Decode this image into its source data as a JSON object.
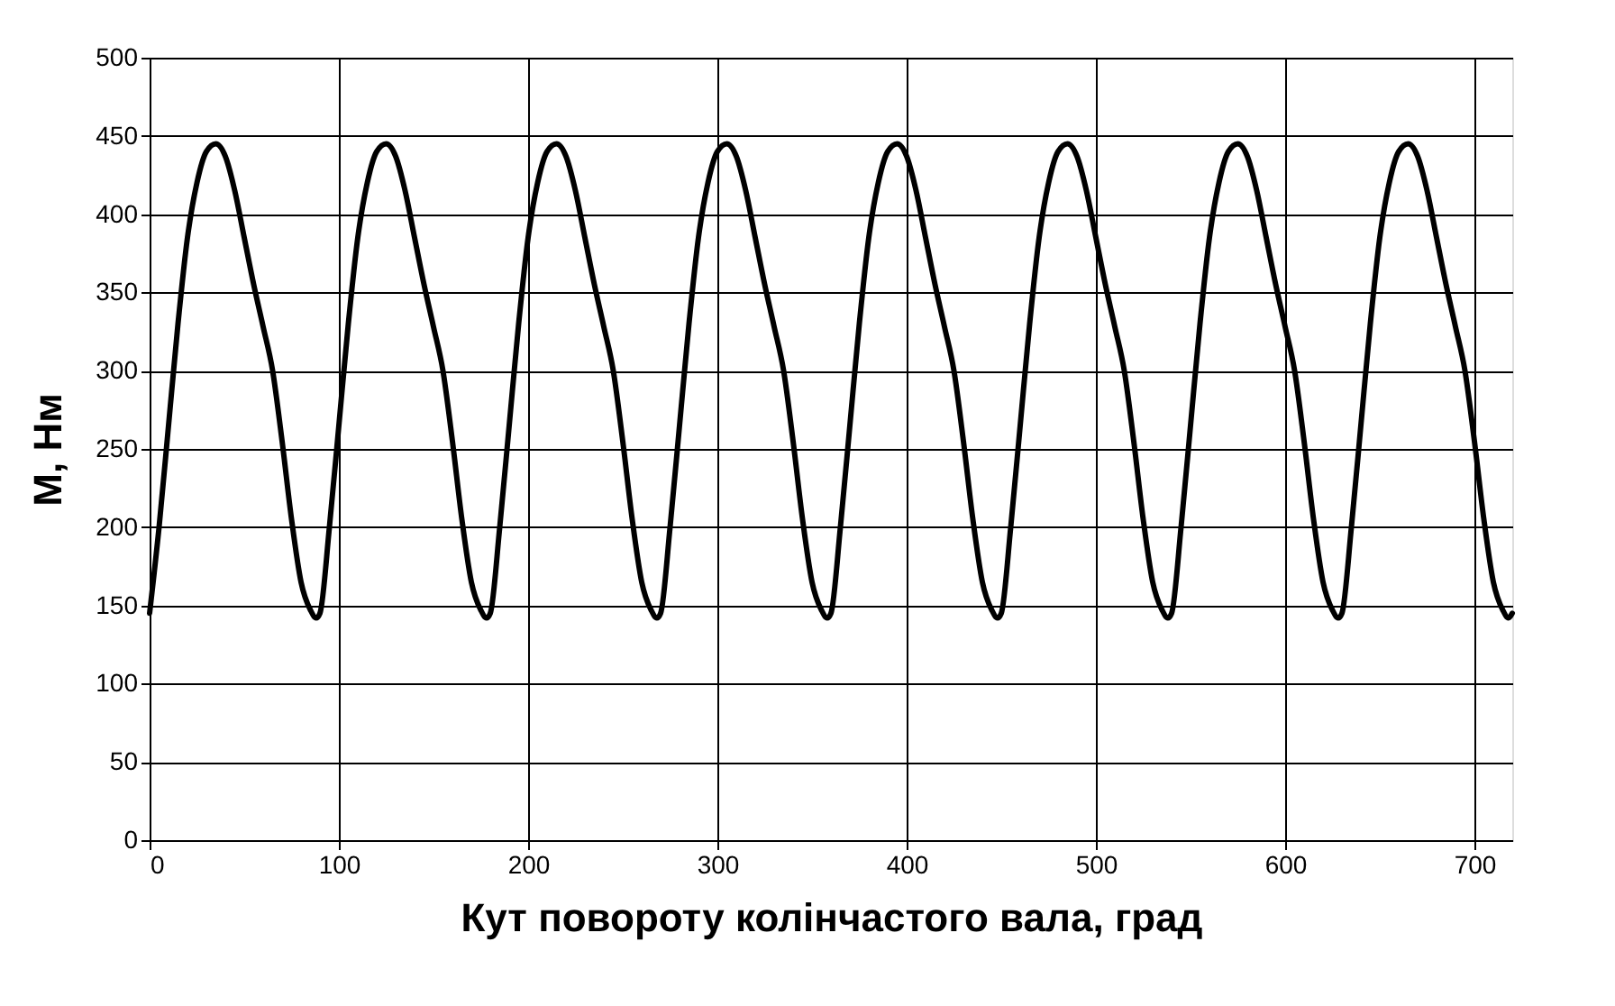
{
  "chart_data": {
    "type": "line",
    "xlabel": "Кут повороту колінчастого вала, град",
    "ylabel": "М, Нм",
    "x": [
      0,
      5,
      10,
      15,
      20,
      25,
      30,
      35,
      40,
      45,
      50,
      55,
      60,
      65,
      70,
      75,
      80,
      85,
      88,
      90,
      95,
      100,
      105,
      110,
      115,
      120,
      125,
      130,
      135,
      140,
      145,
      150,
      155,
      160,
      165,
      170,
      175,
      178,
      180,
      185,
      190,
      195,
      200,
      205,
      210,
      215,
      220,
      225,
      230,
      235,
      240,
      245,
      250,
      255,
      260,
      265,
      268,
      270,
      275,
      280,
      285,
      290,
      295,
      300,
      305,
      310,
      315,
      320,
      325,
      330,
      335,
      340,
      345,
      350,
      355,
      358,
      360,
      365,
      370,
      375,
      380,
      385,
      390,
      395,
      400,
      405,
      410,
      415,
      420,
      425,
      430,
      435,
      440,
      445,
      448,
      450,
      455,
      460,
      465,
      470,
      475,
      480,
      485,
      490,
      495,
      500,
      505,
      510,
      515,
      520,
      525,
      530,
      535,
      538,
      540,
      545,
      550,
      555,
      560,
      565,
      570,
      575,
      580,
      585,
      590,
      595,
      600,
      605,
      610,
      615,
      620,
      625,
      628,
      630,
      635,
      640,
      645,
      650,
      655,
      660,
      665,
      670,
      675,
      680,
      685,
      690,
      695,
      700,
      705,
      710,
      715,
      718,
      720
    ],
    "series": [
      {
        "color": "#000000",
        "values": [
          145,
          200,
          265,
          330,
          385,
          420,
          440,
          445,
          437,
          415,
          385,
          355,
          328,
          300,
          255,
          205,
          165,
          147,
          142,
          145,
          200,
          265,
          330,
          385,
          420,
          440,
          445,
          437,
          415,
          385,
          355,
          328,
          300,
          255,
          205,
          165,
          147,
          142,
          145,
          200,
          265,
          330,
          385,
          420,
          440,
          445,
          437,
          415,
          385,
          355,
          328,
          300,
          255,
          205,
          165,
          147,
          142,
          145,
          200,
          265,
          330,
          385,
          420,
          440,
          445,
          437,
          415,
          385,
          355,
          328,
          300,
          255,
          205,
          165,
          147,
          142,
          145,
          200,
          265,
          330,
          385,
          420,
          440,
          445,
          437,
          415,
          385,
          355,
          328,
          300,
          255,
          205,
          165,
          147,
          142,
          145,
          200,
          265,
          330,
          385,
          420,
          440,
          445,
          437,
          415,
          385,
          355,
          328,
          300,
          255,
          205,
          165,
          147,
          142,
          145,
          200,
          265,
          330,
          385,
          420,
          440,
          445,
          437,
          415,
          385,
          355,
          328,
          300,
          255,
          205,
          165,
          147,
          142,
          145,
          200,
          265,
          330,
          385,
          420,
          440,
          445,
          437,
          415,
          385,
          355,
          328,
          300,
          255,
          205,
          165,
          147,
          142,
          145
        ]
      }
    ],
    "xlim": [
      0,
      720
    ],
    "xticks": [
      0,
      100,
      200,
      300,
      400,
      500,
      600,
      700
    ],
    "ylim": [
      0,
      500
    ],
    "yticks": [
      0,
      50,
      100,
      150,
      200,
      250,
      300,
      350,
      400,
      450,
      500
    ],
    "grid": true,
    "marker": "none",
    "line_style": "solid"
  }
}
